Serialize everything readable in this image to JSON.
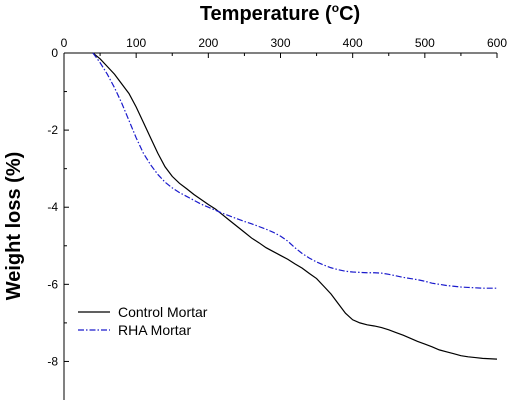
{
  "chart_data": {
    "type": "line",
    "xlabel_main": "Temperature (",
    "xlabel_sup": "o",
    "xlabel_tail": "C)",
    "ylabel": "Weight loss (%)",
    "xlim": [
      0,
      600
    ],
    "ylim": [
      -9,
      0
    ],
    "x_ticks": [
      0,
      100,
      200,
      300,
      400,
      500,
      600
    ],
    "y_ticks": [
      0,
      -2,
      -4,
      -6,
      -8
    ],
    "y_tick_labels": [
      "0",
      "-2",
      "-4",
      "-6",
      "-8"
    ],
    "grid": false,
    "legend_position": "bottom-left",
    "series": [
      {
        "name": "Control Mortar",
        "color": "#000000",
        "style": "solid",
        "x": [
          40,
          50,
          60,
          70,
          80,
          90,
          100,
          110,
          120,
          130,
          140,
          150,
          160,
          170,
          180,
          190,
          200,
          210,
          220,
          230,
          240,
          250,
          260,
          270,
          280,
          290,
          300,
          310,
          320,
          330,
          340,
          350,
          360,
          370,
          380,
          390,
          400,
          410,
          420,
          430,
          440,
          450,
          460,
          470,
          480,
          490,
          500,
          510,
          520,
          530,
          540,
          550,
          560,
          570,
          580,
          590,
          600
        ],
        "y": [
          0.0,
          -0.15,
          -0.35,
          -0.55,
          -0.8,
          -1.05,
          -1.4,
          -1.8,
          -2.2,
          -2.6,
          -2.95,
          -3.2,
          -3.38,
          -3.52,
          -3.67,
          -3.8,
          -3.93,
          -4.05,
          -4.2,
          -4.35,
          -4.5,
          -4.65,
          -4.8,
          -4.92,
          -5.05,
          -5.15,
          -5.25,
          -5.35,
          -5.47,
          -5.58,
          -5.72,
          -5.85,
          -6.05,
          -6.25,
          -6.5,
          -6.75,
          -6.92,
          -7.0,
          -7.05,
          -7.08,
          -7.12,
          -7.18,
          -7.25,
          -7.32,
          -7.4,
          -7.48,
          -7.55,
          -7.62,
          -7.7,
          -7.75,
          -7.8,
          -7.85,
          -7.88,
          -7.9,
          -7.92,
          -7.93,
          -7.94
        ]
      },
      {
        "name": "RHA Mortar",
        "color": "#1a1acc",
        "style": "dashdot",
        "x": [
          40,
          50,
          60,
          70,
          80,
          90,
          100,
          110,
          120,
          130,
          140,
          150,
          160,
          170,
          180,
          190,
          200,
          210,
          220,
          230,
          240,
          250,
          260,
          270,
          280,
          290,
          300,
          310,
          320,
          330,
          340,
          350,
          360,
          370,
          380,
          390,
          400,
          410,
          420,
          430,
          440,
          450,
          460,
          470,
          480,
          490,
          500,
          510,
          520,
          530,
          540,
          550,
          560,
          570,
          580,
          590,
          600
        ],
        "y": [
          0.0,
          -0.25,
          -0.55,
          -0.9,
          -1.3,
          -1.75,
          -2.2,
          -2.6,
          -2.9,
          -3.15,
          -3.35,
          -3.5,
          -3.62,
          -3.72,
          -3.82,
          -3.92,
          -4.0,
          -4.08,
          -4.16,
          -4.23,
          -4.3,
          -4.37,
          -4.43,
          -4.5,
          -4.57,
          -4.65,
          -4.75,
          -4.88,
          -5.05,
          -5.2,
          -5.32,
          -5.42,
          -5.5,
          -5.57,
          -5.62,
          -5.66,
          -5.68,
          -5.69,
          -5.7,
          -5.7,
          -5.71,
          -5.74,
          -5.78,
          -5.82,
          -5.85,
          -5.88,
          -5.92,
          -5.97,
          -6.0,
          -6.03,
          -6.05,
          -6.07,
          -6.08,
          -6.09,
          -6.1,
          -6.1,
          -6.1
        ]
      }
    ]
  }
}
